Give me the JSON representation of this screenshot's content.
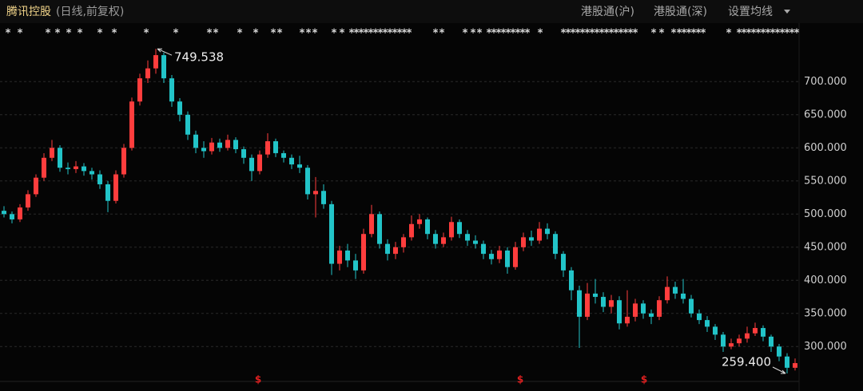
{
  "header": {
    "title": "腾讯控股",
    "subtitle": "(日线,前复权)",
    "tabs": [
      "港股通(沪)",
      "港股通(深)",
      "设置均线"
    ]
  },
  "chart_data": {
    "type": "candlestick",
    "up_color": "#ff3d3d",
    "down_color": "#22c4c8",
    "ylim": [
      257,
      757
    ],
    "yticks": [
      {
        "value": 300,
        "label": "300.000"
      },
      {
        "value": 350,
        "label": "350.000"
      },
      {
        "value": 400,
        "label": "400.000"
      },
      {
        "value": 450,
        "label": "450.000"
      },
      {
        "value": 500,
        "label": "500.000"
      },
      {
        "value": 550,
        "label": "550.000"
      },
      {
        "value": 600,
        "label": "600.000"
      },
      {
        "value": 650,
        "label": "650.000"
      },
      {
        "value": 700,
        "label": "700.000"
      }
    ],
    "grid": true,
    "annotations": [
      "749.538",
      "259.400"
    ],
    "event_symbol": "*",
    "dividend_symbol": "$",
    "open": [
      505,
      500,
      492,
      510,
      530,
      555,
      585,
      600,
      570,
      568,
      572,
      565,
      560,
      545,
      520,
      560,
      600,
      670,
      705,
      720,
      740,
      705,
      670,
      650,
      620,
      600,
      595,
      608,
      600,
      612,
      598,
      585,
      565,
      590,
      610,
      592,
      585,
      575,
      570,
      530,
      535,
      515,
      425,
      445,
      430,
      415,
      470,
      500,
      455,
      440,
      450,
      465,
      485,
      492,
      470,
      455,
      465,
      488,
      470,
      460,
      455,
      440,
      432,
      445,
      420,
      450,
      465,
      460,
      478,
      470,
      440,
      415,
      385,
      345,
      380,
      375,
      360,
      370,
      335,
      345,
      365,
      350,
      345,
      370,
      390,
      380,
      372,
      350,
      340,
      330,
      318,
      300,
      305,
      312,
      320,
      328,
      315,
      300,
      285,
      268
    ],
    "high": [
      512,
      504,
      515,
      536,
      560,
      592,
      612,
      604,
      578,
      580,
      577,
      570,
      566,
      550,
      566,
      606,
      676,
      712,
      732,
      749.538,
      744,
      710,
      675,
      655,
      626,
      610,
      615,
      614,
      620,
      616,
      602,
      590,
      596,
      622,
      614,
      596,
      590,
      588,
      574,
      556,
      545,
      520,
      452,
      455,
      440,
      478,
      514,
      504,
      462,
      458,
      470,
      498,
      500,
      495,
      476,
      472,
      496,
      492,
      476,
      468,
      460,
      446,
      452,
      450,
      458,
      472,
      475,
      488,
      486,
      474,
      444,
      420,
      392,
      396,
      402,
      382,
      378,
      376,
      385,
      372,
      370,
      356,
      376,
      406,
      398,
      402,
      378,
      356,
      346,
      334,
      322,
      312,
      318,
      330,
      336,
      332,
      318,
      304,
      290,
      282
    ],
    "low": [
      495,
      486,
      488,
      505,
      526,
      550,
      580,
      564,
      560,
      562,
      558,
      552,
      538,
      503,
      516,
      555,
      596,
      664,
      698,
      712,
      698,
      662,
      640,
      612,
      592,
      585,
      590,
      594,
      596,
      592,
      576,
      550,
      560,
      585,
      586,
      578,
      568,
      562,
      522,
      495,
      508,
      408,
      415,
      420,
      402,
      410,
      465,
      448,
      430,
      432,
      442,
      460,
      478,
      462,
      448,
      450,
      460,
      464,
      452,
      448,
      432,
      424,
      426,
      410,
      416,
      444,
      452,
      455,
      462,
      432,
      405,
      370,
      298,
      340,
      365,
      352,
      350,
      326,
      330,
      338,
      342,
      334,
      340,
      365,
      372,
      365,
      344,
      334,
      322,
      310,
      292,
      296,
      300,
      306,
      316,
      308,
      292,
      278,
      259.4,
      264
    ],
    "close": [
      500,
      492,
      510,
      530,
      555,
      585,
      600,
      570,
      568,
      572,
      565,
      560,
      545,
      520,
      560,
      600,
      670,
      705,
      720,
      740,
      705,
      670,
      650,
      620,
      600,
      595,
      608,
      600,
      612,
      598,
      585,
      565,
      590,
      610,
      592,
      585,
      575,
      570,
      530,
      535,
      515,
      425,
      445,
      430,
      415,
      470,
      500,
      455,
      440,
      450,
      465,
      485,
      492,
      470,
      455,
      465,
      488,
      470,
      460,
      455,
      440,
      432,
      445,
      420,
      450,
      465,
      460,
      478,
      470,
      440,
      415,
      385,
      345,
      380,
      375,
      360,
      370,
      335,
      345,
      365,
      350,
      345,
      370,
      390,
      380,
      372,
      350,
      340,
      330,
      318,
      300,
      305,
      312,
      320,
      328,
      315,
      300,
      285,
      268,
      275
    ]
  }
}
